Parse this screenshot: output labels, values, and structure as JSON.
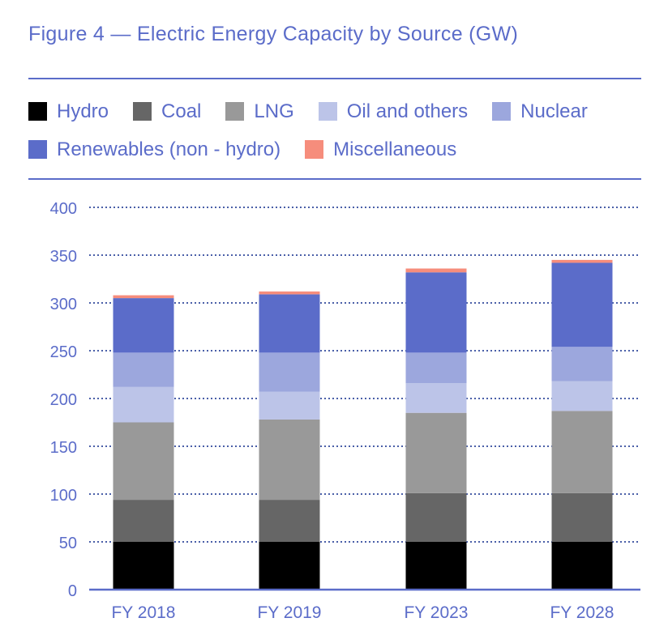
{
  "chart_data": {
    "type": "bar",
    "stacked": true,
    "title": "Figure 4 — Electric Energy Capacity by Source (GW)",
    "xlabel": "",
    "ylabel": "",
    "ylim": [
      0,
      400
    ],
    "yticks": [
      "0",
      "50",
      "100",
      "150",
      "200",
      "250",
      "300",
      "350",
      "400"
    ],
    "grid": true,
    "legend_position": "top",
    "categories": [
      "FY 2018",
      "FY 2019",
      "FY 2023",
      "FY 2028"
    ],
    "series": [
      {
        "name": "Hydro",
        "color": "#000000",
        "values": [
          50,
          50,
          50,
          50
        ]
      },
      {
        "name": "Coal",
        "color": "#666666",
        "values": [
          44,
          44,
          51,
          51
        ]
      },
      {
        "name": "LNG",
        "color": "#999999",
        "values": [
          81,
          84,
          84,
          86
        ]
      },
      {
        "name": "Oil and others",
        "color": "#bcc4e8",
        "values": [
          37,
          29,
          31,
          31
        ]
      },
      {
        "name": "Nuclear",
        "color": "#9ca7dd",
        "values": [
          36,
          41,
          32,
          36
        ]
      },
      {
        "name": "Renewables (non - hydro)",
        "color": "#5b6cc9",
        "values": [
          57,
          61,
          84,
          88
        ]
      },
      {
        "name": "Miscellaneous",
        "color": "#f68d7c",
        "values": [
          3,
          3,
          4,
          3
        ]
      }
    ]
  },
  "colors": {
    "accent": "#5b6cc9"
  }
}
